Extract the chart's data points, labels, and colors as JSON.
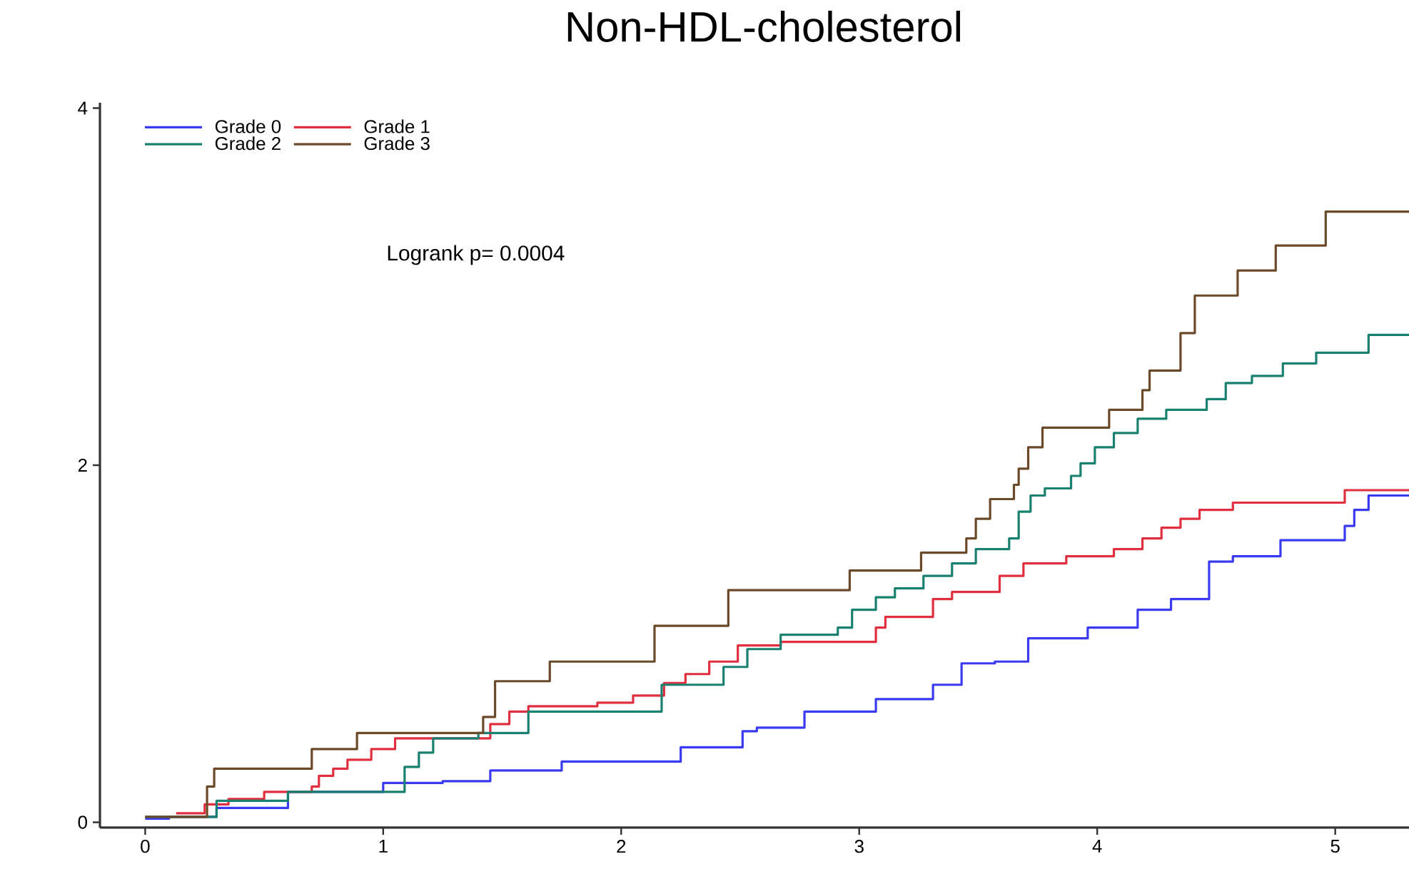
{
  "chart_data": {
    "type": "step",
    "title": "Non-HDL-cholesterol",
    "annotations": [
      "Logrank p= 0.0004"
    ],
    "xlim": [
      -0.19,
      5.31
    ],
    "ylim": [
      -0.03,
      4.03
    ],
    "xticks": [
      0,
      1,
      2,
      3,
      4,
      5
    ],
    "yticks": [
      0,
      2,
      4
    ],
    "grid": false,
    "legend": "top left",
    "marker": "none",
    "line_style": "solid",
    "series": [
      {
        "name": "Grade 0",
        "color": "#3a3af0",
        "x": [
          0,
          0.1,
          0.3,
          0.6,
          1.0,
          1.25,
          1.45,
          1.75,
          2.05,
          2.25,
          2.51,
          2.57,
          2.77,
          3.07,
          3.31,
          3.43,
          3.57,
          3.71,
          3.96,
          4.17,
          4.31,
          4.47,
          4.57,
          4.77,
          5.04,
          5.08,
          5.14,
          5.31
        ],
        "values": [
          0.02,
          0.03,
          0.08,
          0.17,
          0.22,
          0.23,
          0.29,
          0.34,
          0.34,
          0.42,
          0.51,
          0.53,
          0.62,
          0.69,
          0.77,
          0.89,
          0.9,
          1.03,
          1.09,
          1.19,
          1.25,
          1.46,
          1.49,
          1.58,
          1.66,
          1.75,
          1.83,
          1.83
        ]
      },
      {
        "name": "Grade 1",
        "color": "#e03040",
        "x": [
          0.13,
          0.25,
          0.35,
          0.5,
          0.7,
          0.73,
          0.79,
          0.85,
          0.95,
          1.05,
          1.45,
          1.53,
          1.61,
          1.9,
          2.05,
          2.18,
          2.27,
          2.37,
          2.49,
          2.67,
          3.07,
          3.11,
          3.31,
          3.39,
          3.59,
          3.69,
          3.87,
          4.07,
          4.19,
          4.27,
          4.35,
          4.43,
          4.57,
          5.04,
          5.31
        ],
        "values": [
          0.05,
          0.1,
          0.13,
          0.17,
          0.2,
          0.26,
          0.3,
          0.35,
          0.41,
          0.47,
          0.55,
          0.62,
          0.65,
          0.67,
          0.71,
          0.78,
          0.83,
          0.9,
          0.99,
          1.01,
          1.09,
          1.15,
          1.25,
          1.29,
          1.38,
          1.45,
          1.49,
          1.53,
          1.59,
          1.65,
          1.7,
          1.75,
          1.79,
          1.86,
          1.86
        ]
      },
      {
        "name": "Grade 2",
        "color": "#1a8070",
        "x": [
          0,
          0.3,
          0.6,
          1.09,
          1.15,
          1.21,
          1.4,
          1.61,
          2.17,
          2.43,
          2.53,
          2.67,
          2.91,
          2.97,
          3.07,
          3.15,
          3.27,
          3.39,
          3.49,
          3.63,
          3.67,
          3.72,
          3.78,
          3.89,
          3.93,
          3.99,
          4.07,
          4.17,
          4.29,
          4.46,
          4.54,
          4.65,
          4.78,
          4.92,
          5.14,
          5.31
        ],
        "values": [
          0.03,
          0.12,
          0.17,
          0.31,
          0.39,
          0.47,
          0.5,
          0.62,
          0.77,
          0.87,
          0.97,
          1.05,
          1.09,
          1.19,
          1.26,
          1.31,
          1.38,
          1.45,
          1.53,
          1.59,
          1.74,
          1.83,
          1.87,
          1.94,
          2.01,
          2.1,
          2.18,
          2.26,
          2.31,
          2.37,
          2.46,
          2.5,
          2.57,
          2.63,
          2.73,
          2.73
        ]
      },
      {
        "name": "Grade 3",
        "color": "#6b4a2a",
        "x": [
          0,
          0.26,
          0.29,
          0.7,
          0.89,
          1.42,
          1.47,
          1.7,
          2.14,
          2.45,
          2.96,
          3.26,
          3.45,
          3.49,
          3.55,
          3.65,
          3.67,
          3.71,
          3.77,
          4.05,
          4.19,
          4.22,
          4.35,
          4.41,
          4.59,
          4.75,
          4.96,
          5.31
        ],
        "values": [
          0.03,
          0.2,
          0.3,
          0.41,
          0.5,
          0.59,
          0.79,
          0.9,
          1.1,
          1.3,
          1.41,
          1.51,
          1.59,
          1.7,
          1.81,
          1.89,
          1.98,
          2.1,
          2.21,
          2.31,
          2.42,
          2.53,
          2.74,
          2.95,
          3.09,
          3.23,
          3.42,
          3.42
        ]
      }
    ]
  }
}
